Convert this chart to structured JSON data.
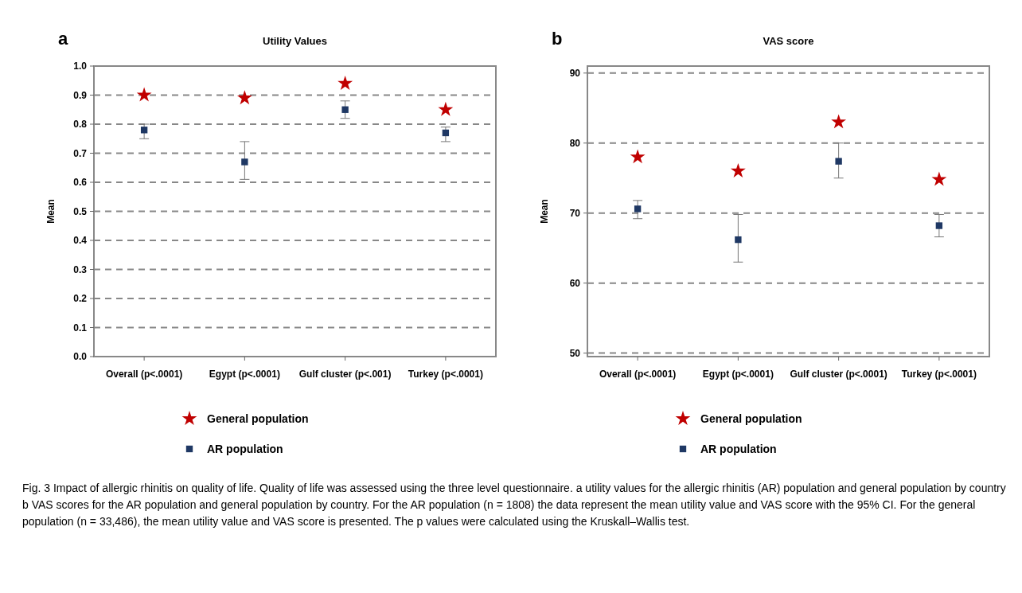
{
  "chart_data": [
    {
      "type": "scatter",
      "title": "Utility Values",
      "ylabel": "Mean",
      "categories": [
        "Overall (p<.0001)",
        "Egypt (p<.0001)",
        "Gulf cluster (p<.001)",
        "Turkey (p<.0001)"
      ],
      "ylim": [
        0,
        1
      ],
      "yticks": [
        {
          "value": 0,
          "label": "0.0"
        },
        0.1,
        0.2,
        0.3,
        0.4,
        0.5,
        0.6,
        0.7,
        0.8,
        0.9,
        {
          "value": 1,
          "label": "1.0"
        }
      ],
      "grid": "y",
      "legend": "bottom",
      "annotations": [
        "a",
        "Fig. 3 Impact of allergic rhinitis on quality of life. Quality of life was assessed using the three level questionnaire. a utility values for the allergic rhinitis (AR) population and general population by country b VAS scores for the AR population and general population by country. For the AR population (n = 1808) the data represent the mean utility value and VAS score with the 95% CI. For the general population (n = 33,486), the mean utility value and VAS score is presented. The p values were calculated using the Kruskall–Wallis test."
      ],
      "series": [
        {
          "name": "General population",
          "color": "#c00000",
          "marker": "star",
          "values": [
            0.9,
            0.89,
            0.94,
            0.85
          ]
        },
        {
          "name": "AR population",
          "color": "#1f3864",
          "marker": "square",
          "values": [
            0.78,
            0.67,
            0.85,
            0.77
          ],
          "errors": [
            [
              0.75,
              0.8
            ],
            [
              0.61,
              0.74
            ],
            [
              0.82,
              0.88
            ],
            [
              0.74,
              0.79
            ]
          ]
        }
      ]
    },
    {
      "type": "scatter",
      "title": "VAS score",
      "ylabel": "Mean",
      "categories": [
        "Overall (p<.0001)",
        "Egypt (p<.0001)",
        "Gulf cluster (p<.0001)",
        "Turkey (p<.0001)"
      ],
      "ylim": [
        49.5,
        91
      ],
      "yticks": [
        50,
        60,
        70,
        80,
        90
      ],
      "grid": "y",
      "legend": "bottom",
      "annotations": [
        "b"
      ],
      "series": [
        {
          "name": "General population",
          "color": "#c00000",
          "marker": "star",
          "values": [
            78,
            76,
            83,
            74.8
          ]
        },
        {
          "name": "AR population",
          "color": "#1f3864",
          "marker": "square",
          "values": [
            70.6,
            66.2,
            77.4,
            68.2
          ],
          "errors": [
            [
              69.2,
              71.8
            ],
            [
              63,
              69.8
            ],
            [
              75,
              80
            ],
            [
              66.6,
              69.8
            ]
          ]
        }
      ]
    }
  ]
}
